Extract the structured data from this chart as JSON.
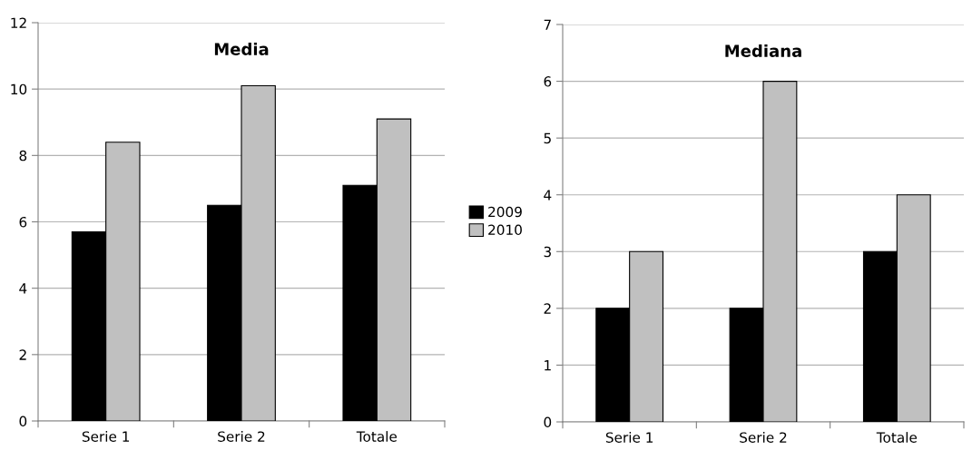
{
  "chart_data": [
    {
      "type": "bar",
      "title": "Media",
      "categories": [
        "Serie 1",
        "Serie 2",
        "Totale"
      ],
      "series": [
        {
          "name": "2009",
          "color": "#000000",
          "values": [
            5.7,
            6.5,
            7.1
          ]
        },
        {
          "name": "2010",
          "color": "#c0c0c0",
          "values": [
            8.4,
            10.1,
            9.1
          ]
        }
      ],
      "ylim": [
        0,
        12
      ],
      "yticks": [
        0,
        2,
        4,
        6,
        8,
        10,
        12
      ],
      "grid": "y",
      "legend": "right"
    },
    {
      "type": "bar",
      "title": "Mediana",
      "categories": [
        "Serie 1",
        "Serie 2",
        "Totale"
      ],
      "series": [
        {
          "color": "#000000",
          "values": [
            2,
            2,
            3
          ]
        },
        {
          "color": "#c0c0c0",
          "values": [
            3,
            6,
            4
          ]
        }
      ],
      "ylim": [
        0,
        7
      ],
      "yticks": [
        0,
        1,
        2,
        3,
        4,
        5,
        6,
        7
      ],
      "grid": "y"
    }
  ]
}
